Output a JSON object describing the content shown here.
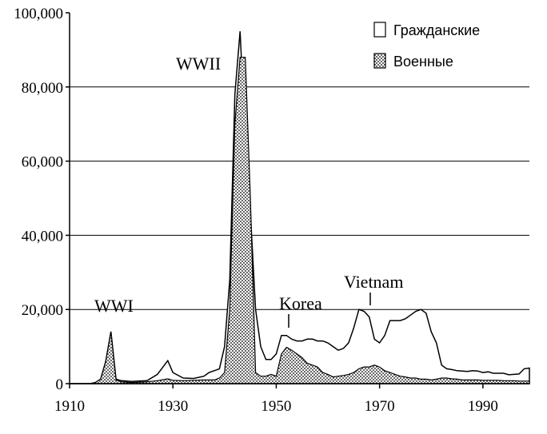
{
  "chart_data": {
    "type": "area",
    "title": "",
    "xlabel": "",
    "ylabel": "",
    "xlim": [
      1910,
      1999
    ],
    "ylim": [
      0,
      100000
    ],
    "x_ticks": [
      "1910",
      "1930",
      "1950",
      "1970",
      "1990"
    ],
    "y_ticks": [
      "0",
      "20,000",
      "40,000",
      "60,000",
      "80,000",
      "100,000"
    ],
    "grid": "horizontal",
    "legend_position": "top-right",
    "legend": [
      {
        "label": "Гражданские",
        "fill": "white"
      },
      {
        "label": "Военные",
        "fill": "dotted"
      }
    ],
    "annotations": [
      {
        "text": "WWI",
        "x": 1918
      },
      {
        "text": "WWII",
        "x": 1943
      },
      {
        "text": "Korea",
        "x": 1952
      },
      {
        "text": "Vietnam",
        "x": 1968
      }
    ],
    "series": [
      {
        "name": "Гражданские",
        "x": [
          1910,
          1914,
          1915,
          1916,
          1917,
          1918,
          1919,
          1920,
          1922,
          1925,
          1927,
          1929,
          1930,
          1932,
          1934,
          1936,
          1937,
          1938,
          1939,
          1940,
          1941,
          1942,
          1943,
          1944,
          1945,
          1946,
          1947,
          1948,
          1949,
          1950,
          1951,
          1952,
          1953,
          1954,
          1955,
          1956,
          1957,
          1958,
          1959,
          1960,
          1961,
          1962,
          1963,
          1964,
          1965,
          1966,
          1967,
          1968,
          1969,
          1970,
          1971,
          1972,
          1973,
          1974,
          1975,
          1976,
          1977,
          1978,
          1979,
          1980,
          1981,
          1982,
          1983,
          1984,
          1985,
          1986,
          1987,
          1988,
          1989,
          1990,
          1991,
          1992,
          1993,
          1994,
          1995,
          1996,
          1997,
          1998,
          1999
        ],
        "values": [
          0,
          0,
          300,
          1200,
          6000,
          14000,
          1200,
          800,
          600,
          800,
          2500,
          6200,
          3000,
          1500,
          1400,
          2000,
          3000,
          3500,
          4000,
          10000,
          28000,
          78000,
          95000,
          66000,
          46000,
          20000,
          10000,
          6500,
          6500,
          8000,
          13000,
          13000,
          12000,
          11500,
          11500,
          12000,
          12000,
          11500,
          11500,
          11000,
          10000,
          9000,
          9500,
          11000,
          15000,
          20000,
          19500,
          18000,
          12000,
          11000,
          13000,
          17000,
          17000,
          17000,
          17500,
          18500,
          19500,
          20000,
          19000,
          14000,
          11000,
          5000,
          4000,
          3800,
          3500,
          3400,
          3300,
          3500,
          3400,
          3000,
          3200,
          2800,
          2800,
          2800,
          2400,
          2500,
          2600,
          4000,
          4200
        ]
      },
      {
        "name": "Военные",
        "x": [
          1910,
          1914,
          1915,
          1916,
          1917,
          1918,
          1919,
          1920,
          1922,
          1925,
          1927,
          1929,
          1930,
          1932,
          1934,
          1936,
          1937,
          1938,
          1939,
          1940,
          1941,
          1942,
          1943,
          1944,
          1945,
          1946,
          1947,
          1948,
          1949,
          1950,
          1951,
          1952,
          1953,
          1954,
          1955,
          1956,
          1957,
          1958,
          1959,
          1960,
          1961,
          1962,
          1963,
          1964,
          1965,
          1966,
          1967,
          1968,
          1969,
          1970,
          1971,
          1972,
          1973,
          1974,
          1975,
          1976,
          1977,
          1978,
          1979,
          1980,
          1981,
          1982,
          1983,
          1984,
          1985,
          1986,
          1987,
          1988,
          1989,
          1990,
          1991,
          1992,
          1993,
          1994,
          1995,
          1996,
          1997,
          1998,
          1999
        ],
        "values": [
          0,
          0,
          300,
          1200,
          6000,
          14000,
          1000,
          500,
          300,
          500,
          800,
          1300,
          900,
          800,
          900,
          1000,
          1000,
          1000,
          1500,
          3000,
          20000,
          70000,
          88000,
          88000,
          50000,
          3000,
          2000,
          2000,
          2500,
          2000,
          8000,
          9800,
          9000,
          8000,
          7000,
          5500,
          5000,
          4500,
          3000,
          2500,
          1800,
          2000,
          2200,
          2500,
          3000,
          4000,
          4500,
          4500,
          5000,
          4500,
          3500,
          3000,
          2500,
          2000,
          1800,
          1500,
          1500,
          1200,
          1200,
          1000,
          1200,
          1500,
          1500,
          1300,
          1200,
          1000,
          1000,
          1000,
          1000,
          900,
          900,
          900,
          900,
          800,
          800,
          800,
          700,
          700,
          700
        ]
      }
    ]
  }
}
